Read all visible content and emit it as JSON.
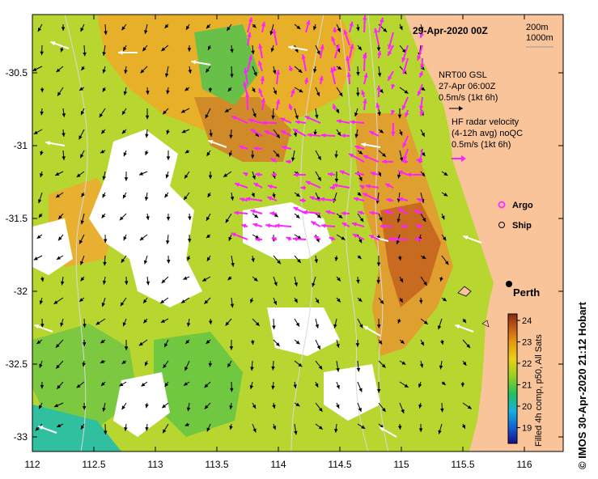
{
  "title": "29-Apr-2020 00Z",
  "depth_legend": [
    "200m",
    "1000m"
  ],
  "gsl": {
    "lines": [
      "NRT00 GSL",
      "27-Apr 06:00Z",
      "0.5m/s (1kt 6h)"
    ]
  },
  "hf": {
    "lines": [
      "HF radar velocity",
      "(4-12h avg) noQC",
      "0.5m/s (1kt 6h)"
    ]
  },
  "symbols": {
    "argo": "Argo",
    "ship": "Ship"
  },
  "city": "Perth",
  "colorbar": {
    "title": "Filled 4h comp, p50, All Sats",
    "ticks": [
      "24",
      "23",
      "22",
      "21",
      "20",
      "19"
    ]
  },
  "axes": {
    "x_ticks": [
      "112",
      "112.5",
      "113",
      "113.5",
      "114",
      "114.5",
      "115",
      "115.5",
      "116"
    ],
    "y_ticks": [
      "-30.5",
      "-31",
      "-31.5",
      "-32",
      "-32.5",
      "-33"
    ]
  },
  "credit": "© IMOS 30-Apr-2020 21:12 Hobart",
  "colors": {
    "land": "#f9c49a",
    "argo": "#ff33ff",
    "hf_arrow": "#ff22ff",
    "gsl_arrow": "#000000"
  }
}
